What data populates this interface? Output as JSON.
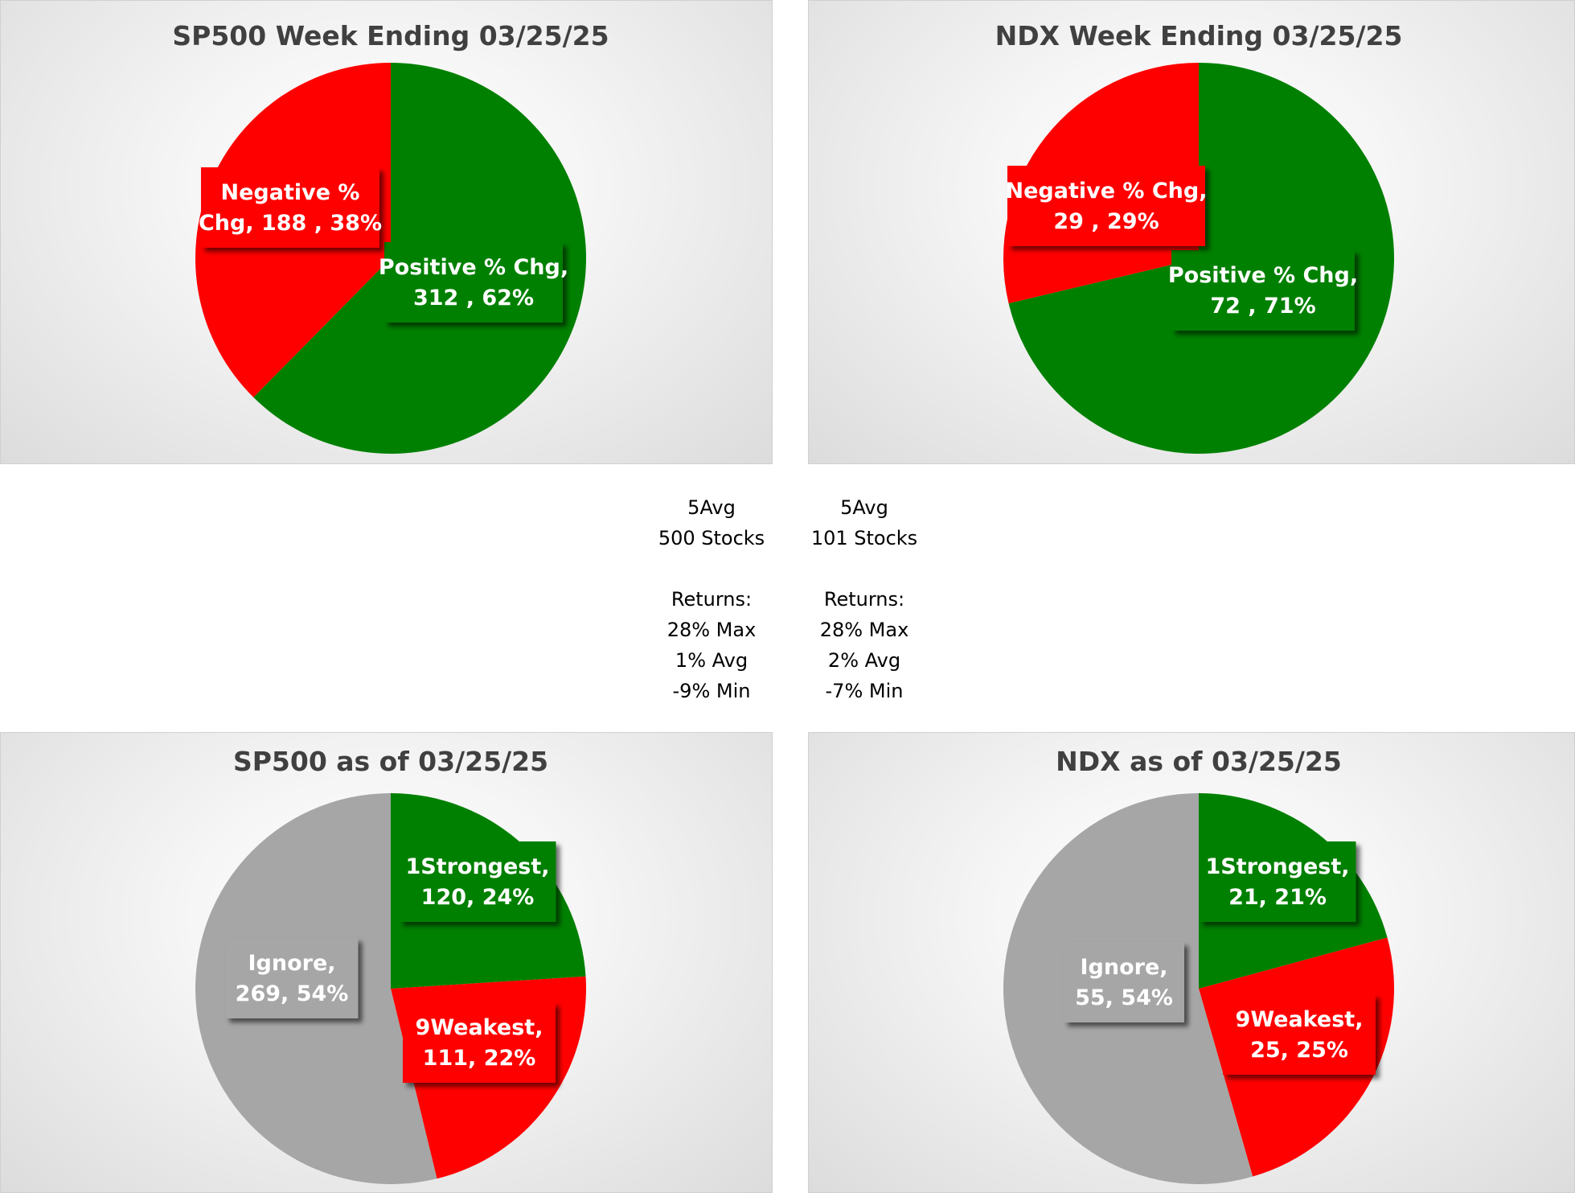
{
  "colors": {
    "positive": "#008000",
    "negative": "#ff0000",
    "neutral": "#a6a6a6",
    "label_text": "#ffffff",
    "title_text": "#404040"
  },
  "chart_data": [
    {
      "id": "sp500-week",
      "type": "pie",
      "title": "SP500 Week Ending 03/25/25",
      "slices": [
        {
          "name": "Positive % Chg",
          "count": 312,
          "percent": 62,
          "color": "#008000",
          "label_lines": [
            "Positive % Chg,",
            "312 , 62%"
          ]
        },
        {
          "name": "Negative % Chg",
          "count": 188,
          "percent": 38,
          "color": "#ff0000",
          "label_lines": [
            "Negative %",
            "Chg,  188 , 38%"
          ]
        }
      ]
    },
    {
      "id": "ndx-week",
      "type": "pie",
      "title": "NDX Week Ending 03/25/25",
      "slices": [
        {
          "name": "Positive % Chg",
          "count": 72,
          "percent": 71,
          "color": "#008000",
          "label_lines": [
            "Positive % Chg,",
            "72 , 71%"
          ]
        },
        {
          "name": "Negative % Chg",
          "count": 29,
          "percent": 29,
          "color": "#ff0000",
          "label_lines": [
            "Negative % Chg,",
            "29 , 29%"
          ]
        }
      ]
    },
    {
      "id": "sp500-asof",
      "type": "pie",
      "title": "SP500 as of 03/25/25",
      "slices": [
        {
          "name": "1Strongest",
          "count": 120,
          "percent": 24,
          "color": "#008000",
          "label_lines": [
            "1Strongest,",
            "120, 24%"
          ]
        },
        {
          "name": "9Weakest",
          "count": 111,
          "percent": 22,
          "color": "#ff0000",
          "label_lines": [
            "9Weakest,",
            "111, 22%"
          ]
        },
        {
          "name": "Ignore",
          "count": 269,
          "percent": 54,
          "color": "#a6a6a6",
          "label_lines": [
            "Ignore,",
            "269, 54%"
          ]
        }
      ]
    },
    {
      "id": "ndx-asof",
      "type": "pie",
      "title": "NDX as of 03/25/25",
      "slices": [
        {
          "name": "1Strongest",
          "count": 21,
          "percent": 21,
          "color": "#008000",
          "label_lines": [
            "1Strongest,",
            "21, 21%"
          ]
        },
        {
          "name": "9Weakest",
          "count": 25,
          "percent": 25,
          "color": "#ff0000",
          "label_lines": [
            "9Weakest,",
            "25, 25%"
          ]
        },
        {
          "name": "Ignore",
          "count": 55,
          "percent": 54,
          "color": "#a6a6a6",
          "label_lines": [
            "Ignore,",
            "55, 54%"
          ]
        }
      ]
    }
  ],
  "stats": {
    "sp500": {
      "line1": "5Avg",
      "line2": "500 Stocks",
      "returns_label": "Returns:",
      "max": "28% Max",
      "avg": "1% Avg",
      "min": "-9% Min"
    },
    "ndx": {
      "line1": "5Avg",
      "line2": "101 Stocks",
      "returns_label": "Returns:",
      "max": "28% Max",
      "avg": "2% Avg",
      "min": "-7% Min"
    }
  }
}
